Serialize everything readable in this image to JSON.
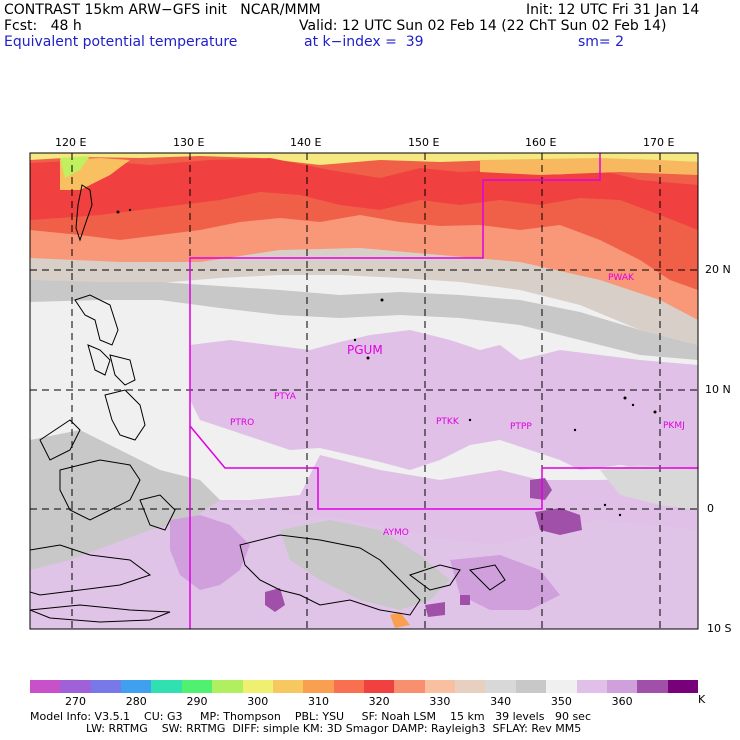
{
  "header": {
    "line1_left": "CONTRAST 15km ARW−GFS init   NCAR/MMM",
    "line1_right": "Init: 12 UTC Fri 31 Jan 14",
    "line2_left": "Fcst:   48 h",
    "line2_right": "Valid: 12 UTC Sun 02 Feb 14 (22 ChT Sun 02 Feb 14)",
    "line3_left": "Equivalent potential temperature",
    "line3_mid": "at k−index =  39",
    "line3_right": "sm= 2"
  },
  "axes": {
    "lon_labels": [
      "120 E",
      "130 E",
      "140 E",
      "150 E",
      "160 E",
      "170 E"
    ],
    "lat_labels": [
      "20 N",
      "10 N",
      "0",
      "10 S"
    ]
  },
  "stations": [
    "PGUM",
    "PTYA",
    "PTRO",
    "PTKK",
    "PTPP",
    "PKMJ",
    "PWAK",
    "AYMO"
  ],
  "colorbar": {
    "labels": [
      "270",
      "280",
      "290",
      "300",
      "310",
      "320",
      "330",
      "340",
      "350",
      "360"
    ],
    "unit": "K",
    "colors": [
      "#c850c8",
      "#a060d8",
      "#7878e8",
      "#40a0f0",
      "#30e0b0",
      "#50f070",
      "#b0f060",
      "#f0f070",
      "#f8c860",
      "#f8a050",
      "#f87050",
      "#f04040",
      "#f89070",
      "#f8c0a0",
      "#e8d0c0",
      "#d8d8d8",
      "#c8c8c8",
      "#f0f0f0",
      "#e0c0e8",
      "#d0a0dc",
      "#a050a8",
      "#780078"
    ]
  },
  "model_info": {
    "line1": "Model Info: V3.5.1    CU: G3     MP: Thompson    PBL: YSU     SF: Noah LSM    15 km   39 levels   90 sec",
    "line2": "                LW: RRTMG    SW: RRTMG  DIFF: simple KM: 3D Smagor DAMP: Rayleigh3  SFLAY: Rev MM5"
  }
}
